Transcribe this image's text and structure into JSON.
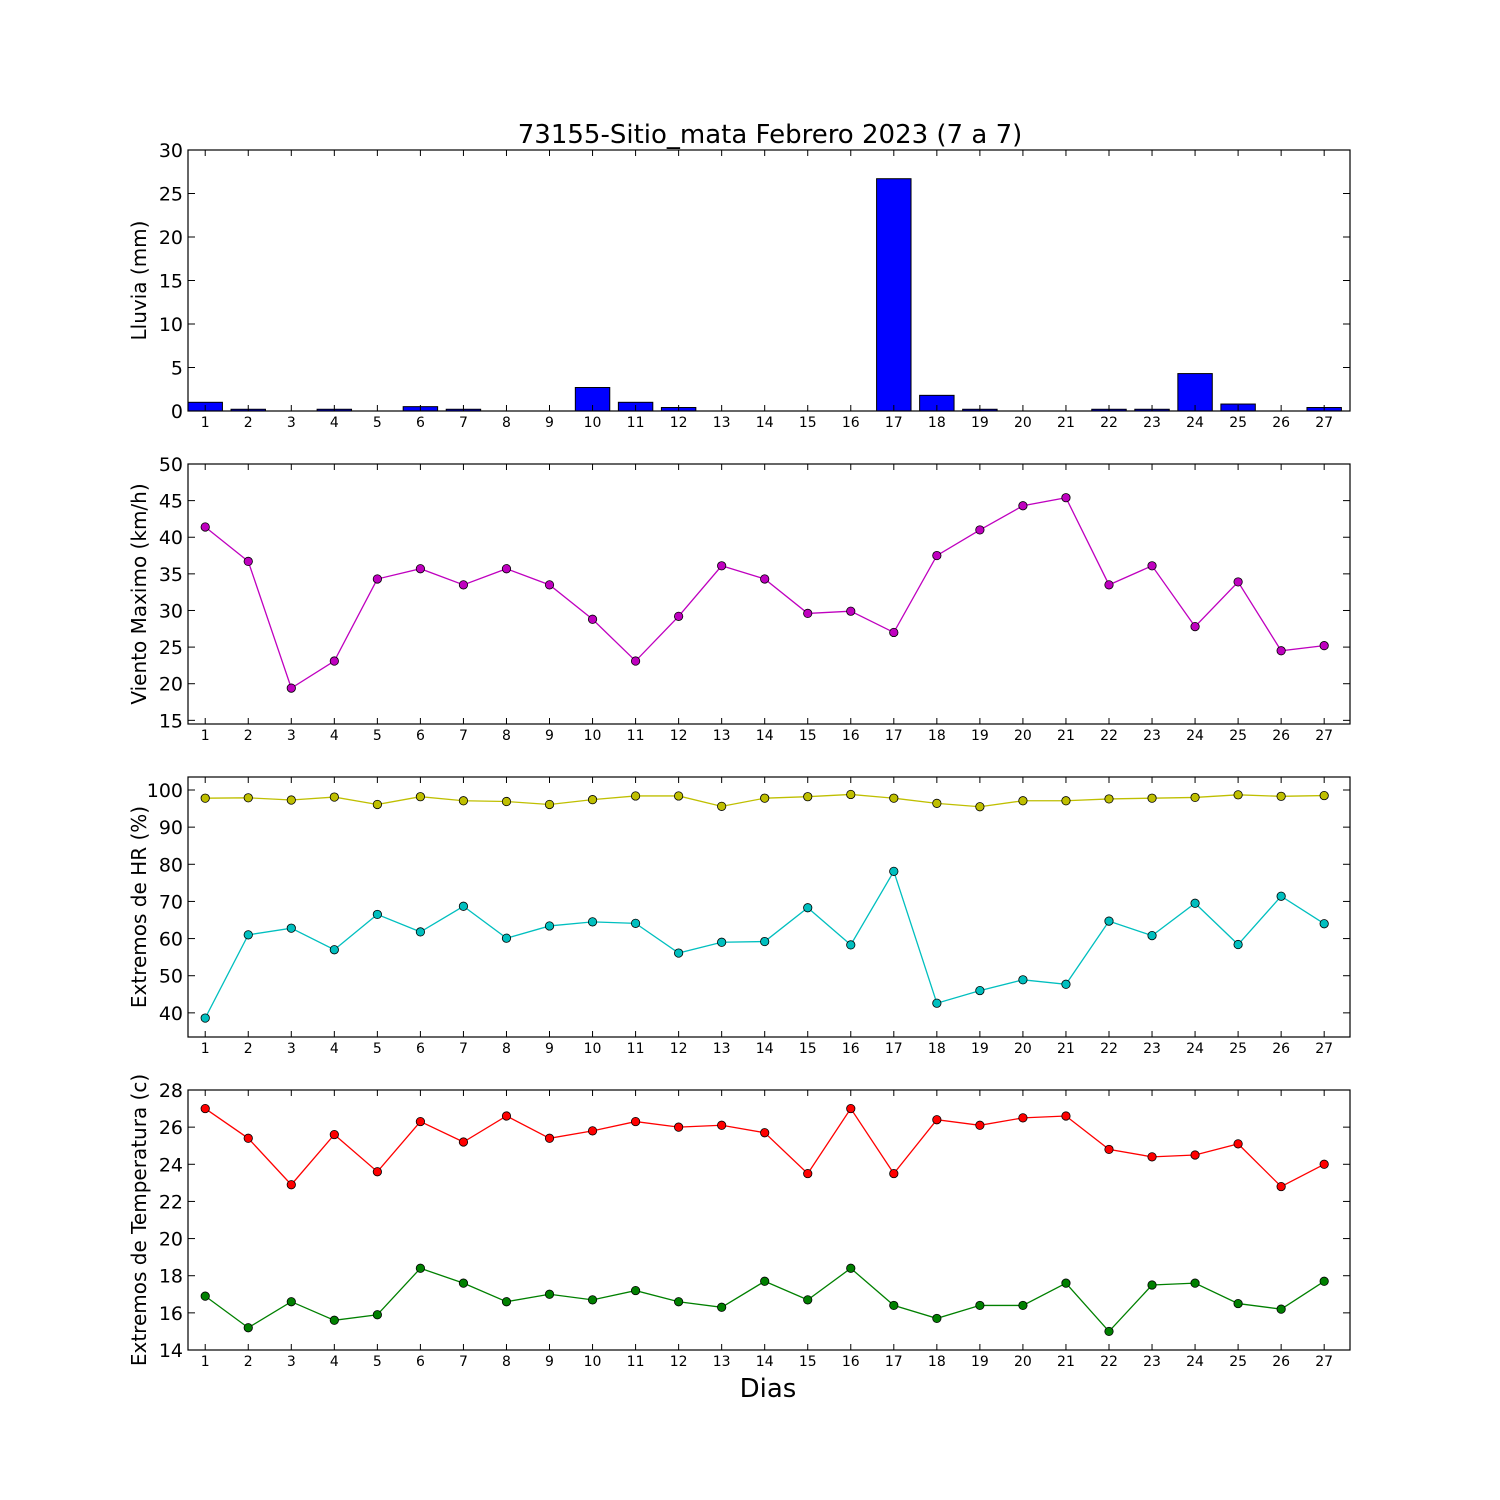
{
  "title": "73155-Sitio_mata Febrero 2023  (7 a 7)",
  "xlabel": "Dias",
  "chart_data": [
    {
      "type": "bar",
      "ylabel": "Lluvia (mm)",
      "x": [
        1,
        2,
        3,
        4,
        5,
        6,
        7,
        8,
        9,
        10,
        11,
        12,
        13,
        14,
        15,
        16,
        17,
        18,
        19,
        20,
        21,
        22,
        23,
        24,
        25,
        26,
        27
      ],
      "ylim": [
        0,
        30
      ],
      "yticks": [
        0,
        5,
        10,
        15,
        20,
        25,
        30
      ],
      "series": [
        {
          "color": "#0000ff",
          "values": [
            1.0,
            0.2,
            0,
            0.2,
            0,
            0.5,
            0.2,
            0,
            0,
            2.7,
            1.0,
            0.4,
            0,
            0,
            0,
            0,
            26.7,
            1.8,
            0.2,
            0,
            0,
            0.2,
            0.2,
            4.3,
            0.8,
            0,
            0.4
          ]
        }
      ]
    },
    {
      "type": "line",
      "ylabel": "Viento Maximo (km/h)",
      "x": [
        1,
        2,
        3,
        4,
        5,
        6,
        7,
        8,
        9,
        10,
        11,
        12,
        13,
        14,
        15,
        16,
        17,
        18,
        19,
        20,
        21,
        22,
        23,
        24,
        25,
        26,
        27
      ],
      "ylim": [
        14.5,
        50
      ],
      "yticks": [
        15,
        20,
        25,
        30,
        35,
        40,
        45,
        50
      ],
      "series": [
        {
          "color": "#bf00bf",
          "values": [
            41.4,
            36.7,
            19.4,
            23.1,
            34.3,
            35.7,
            33.5,
            35.7,
            33.5,
            28.8,
            23.1,
            29.2,
            36.1,
            34.3,
            29.6,
            29.9,
            27.0,
            37.5,
            41.0,
            44.3,
            45.4,
            33.5,
            36.1,
            27.8,
            33.9,
            24.5,
            25.2
          ]
        }
      ]
    },
    {
      "type": "line",
      "ylabel": "Extremos de HR (%)",
      "x": [
        1,
        2,
        3,
        4,
        5,
        6,
        7,
        8,
        9,
        10,
        11,
        12,
        13,
        14,
        15,
        16,
        17,
        18,
        19,
        20,
        21,
        22,
        23,
        24,
        25,
        26,
        27
      ],
      "ylim": [
        33.5,
        103.5
      ],
      "yticks": [
        40,
        50,
        60,
        70,
        80,
        90,
        100
      ],
      "series": [
        {
          "color": "#bfbf00",
          "values": [
            97.8,
            97.9,
            97.3,
            98.1,
            96.1,
            98.2,
            97.1,
            96.9,
            96.1,
            97.4,
            98.4,
            98.4,
            95.6,
            97.8,
            98.2,
            98.8,
            97.8,
            96.4,
            95.5,
            97.1,
            97.1,
            97.6,
            97.8,
            98.0,
            98.7,
            98.3,
            98.5
          ]
        },
        {
          "color": "#00bfbf",
          "values": [
            38.6,
            61.0,
            62.8,
            57.0,
            66.5,
            61.8,
            68.7,
            60.1,
            63.4,
            64.5,
            64.1,
            56.1,
            59.0,
            59.2,
            68.3,
            58.3,
            78.1,
            42.6,
            46.0,
            48.9,
            47.7,
            64.7,
            60.8,
            69.5,
            58.4,
            71.4,
            64.0
          ]
        }
      ]
    },
    {
      "type": "line",
      "ylabel": "Extremos de Temperatura (c)",
      "x": [
        1,
        2,
        3,
        4,
        5,
        6,
        7,
        8,
        9,
        10,
        11,
        12,
        13,
        14,
        15,
        16,
        17,
        18,
        19,
        20,
        21,
        22,
        23,
        24,
        25,
        26,
        27
      ],
      "ylim": [
        14,
        28
      ],
      "yticks": [
        14,
        16,
        18,
        20,
        22,
        24,
        26,
        28
      ],
      "series": [
        {
          "color": "#ff0000",
          "values": [
            27.0,
            25.4,
            22.9,
            25.6,
            23.6,
            26.3,
            25.2,
            26.6,
            25.4,
            25.8,
            26.3,
            26.0,
            26.1,
            25.7,
            23.5,
            27.0,
            23.5,
            26.4,
            26.1,
            26.5,
            26.6,
            24.8,
            24.4,
            24.5,
            25.1,
            22.8,
            24.0
          ]
        },
        {
          "color": "#008000",
          "values": [
            16.9,
            15.2,
            16.6,
            15.6,
            15.9,
            18.4,
            17.6,
            16.6,
            17.0,
            16.7,
            17.2,
            16.6,
            16.3,
            17.7,
            16.7,
            18.4,
            16.4,
            15.7,
            16.4,
            16.4,
            17.6,
            15.0,
            17.5,
            17.6,
            16.5,
            16.2,
            17.7
          ]
        }
      ]
    }
  ]
}
